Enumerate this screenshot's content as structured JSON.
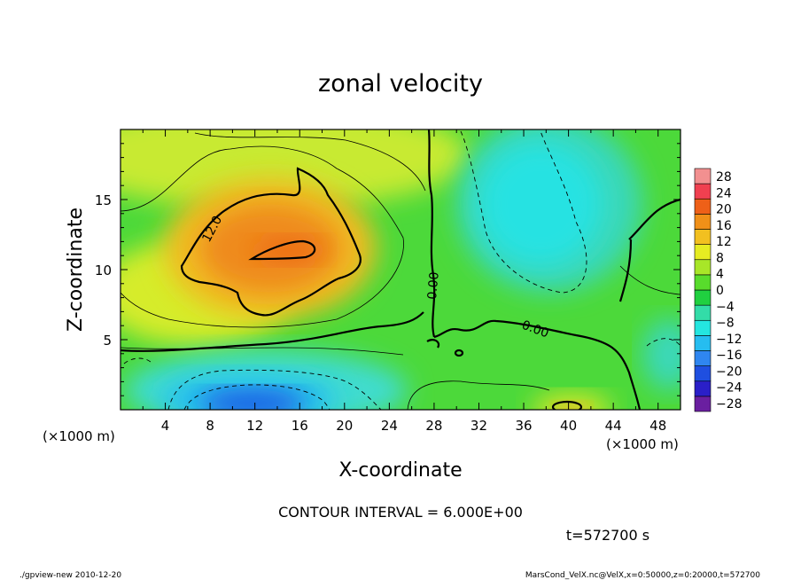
{
  "chart_data": {
    "type": "heatmap",
    "title": "zonal velocity",
    "xlabel": "X-coordinate",
    "ylabel": "Z-coordinate",
    "x_unit_label": "(×1000 m)",
    "y_unit_label": "(×1000 m)",
    "xlim": [
      0,
      50
    ],
    "ylim": [
      0,
      20
    ],
    "x_ticks": [
      "4",
      "8",
      "12",
      "16",
      "20",
      "24",
      "28",
      "32",
      "36",
      "40",
      "44",
      "48"
    ],
    "y_ticks": [
      "5",
      "10",
      "15"
    ],
    "colorbar_ticks": [
      "28",
      "24",
      "20",
      "16",
      "12",
      "8",
      "4",
      "0",
      "−4",
      "−8",
      "−12",
      "−16",
      "−20",
      "−24",
      "−28"
    ],
    "colorbar_range": [
      -30,
      30
    ],
    "colorbar_colors": [
      "#6a1fa0",
      "#2a1fc8",
      "#1f4fe0",
      "#2f86f0",
      "#26bdf0",
      "#24e6e0",
      "#33dca8",
      "#20d040",
      "#58dc2c",
      "#a8e628",
      "#e6ec22",
      "#f2c020",
      "#f09018",
      "#ee6018",
      "#f04050",
      "#f29090"
    ],
    "contour_labels": [
      "12.0",
      "0.00",
      "0.00"
    ],
    "contour_interval_text": "CONTOUR INTERVAL = 6.000E+00",
    "time_text": "t=572700 s",
    "features": [
      {
        "x": 14,
        "z": 11,
        "value": 16
      },
      {
        "x": 12,
        "z": 2,
        "value": -20
      },
      {
        "x": 38,
        "z": 14,
        "value": -8
      },
      {
        "x": 40,
        "z": 0.5,
        "value": 14
      },
      {
        "x": 49,
        "z": 4,
        "value": -7
      },
      {
        "x": 22,
        "z": 17,
        "value": 10
      }
    ]
  },
  "footer": {
    "left": "./gpview-new  2010-12-20",
    "right": "MarsCond_VelX.nc@VelX,x=0:50000,z=0:20000,t=572700"
  }
}
